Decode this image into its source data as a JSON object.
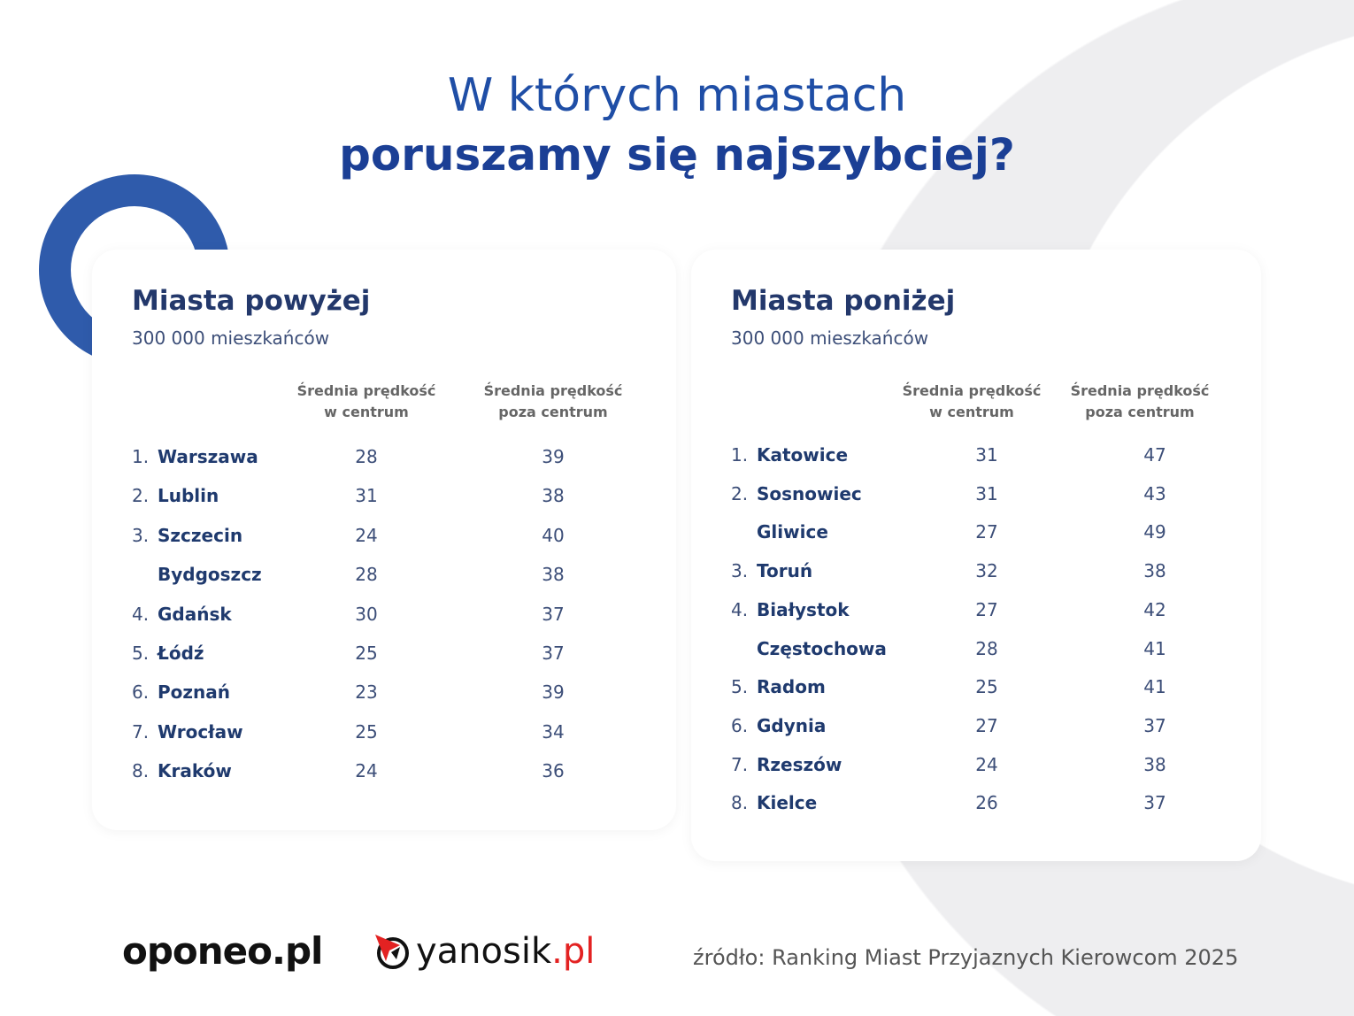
{
  "title": {
    "line1": "W których miastach",
    "line2": "poruszamy się najszybciej?"
  },
  "headers": {
    "center": [
      "Średnia prędkość",
      "w centrum"
    ],
    "outside": [
      "Średnia prędkość",
      "poza centrum"
    ]
  },
  "left": {
    "heading": "Miasta powyżej",
    "sub": "300 000 mieszkańców",
    "rows": [
      {
        "rank": "1.",
        "city": "Warszawa",
        "center": "28",
        "outside": "39"
      },
      {
        "rank": "2.",
        "city": "Lublin",
        "center": "31",
        "outside": "38"
      },
      {
        "rank": "3.",
        "city": "Szczecin",
        "center": "24",
        "outside": "40"
      },
      {
        "rank": "",
        "city": "Bydgoszcz",
        "center": "28",
        "outside": "38"
      },
      {
        "rank": "4.",
        "city": "Gdańsk",
        "center": "30",
        "outside": "37"
      },
      {
        "rank": "5.",
        "city": "Łódź",
        "center": "25",
        "outside": "37"
      },
      {
        "rank": "6.",
        "city": "Poznań",
        "center": "23",
        "outside": "39"
      },
      {
        "rank": "7.",
        "city": "Wrocław",
        "center": "25",
        "outside": "34"
      },
      {
        "rank": "8.",
        "city": "Kraków",
        "center": "24",
        "outside": "36"
      }
    ]
  },
  "right": {
    "heading": "Miasta poniżej",
    "sub": "300 000 mieszkańców",
    "rows": [
      {
        "rank": "1.",
        "city": "Katowice",
        "center": "31",
        "outside": "47"
      },
      {
        "rank": "2.",
        "city": "Sosnowiec",
        "center": "31",
        "outside": "43"
      },
      {
        "rank": "",
        "city": "Gliwice",
        "center": "27",
        "outside": "49"
      },
      {
        "rank": "3.",
        "city": "Toruń",
        "center": "32",
        "outside": "38"
      },
      {
        "rank": "4.",
        "city": "Białystok",
        "center": "27",
        "outside": "42"
      },
      {
        "rank": "",
        "city": "Częstochowa",
        "center": "28",
        "outside": "41"
      },
      {
        "rank": "5.",
        "city": "Radom",
        "center": "25",
        "outside": "41"
      },
      {
        "rank": "6.",
        "city": "Gdynia",
        "center": "27",
        "outside": "37"
      },
      {
        "rank": "7.",
        "city": "Rzeszów",
        "center": "24",
        "outside": "38"
      },
      {
        "rank": "8.",
        "city": "Kielce",
        "center": "26",
        "outside": "37"
      }
    ]
  },
  "footer": {
    "logo1": "oponeo.pl",
    "logo2_main": "yanosik",
    "logo2_tld": ".pl",
    "source": "źródło: Ranking Miast Przyjaznych Kierowcom 2025"
  }
}
